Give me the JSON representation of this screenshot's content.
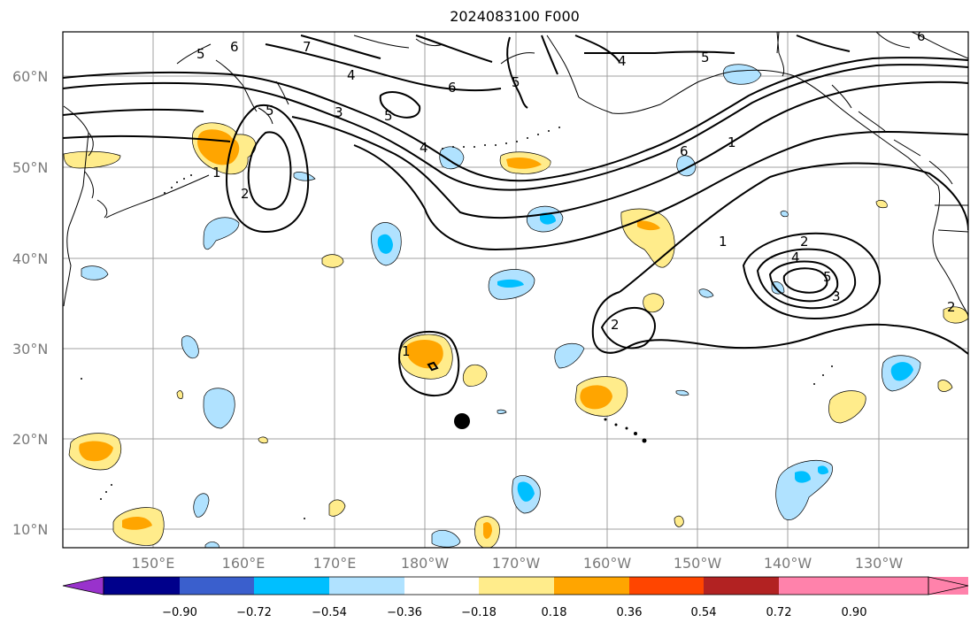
{
  "title": "2024083100 F000",
  "map": {
    "lat_labels": [
      "60°N",
      "50°N",
      "40°N",
      "30°N",
      "20°N",
      "10°N"
    ],
    "lon_labels": [
      "150°E",
      "160°E",
      "170°E",
      "180°W",
      "170°W",
      "160°W",
      "150°W",
      "140°W",
      "130°W"
    ],
    "contour_labels": [
      "1",
      "2",
      "3",
      "4",
      "5",
      "6",
      "7"
    ],
    "marker": "storm-center-dot"
  },
  "colorbar": {
    "tick_labels": [
      "−0.90",
      "−0.72",
      "−0.54",
      "−0.36",
      "−0.18",
      "0.18",
      "0.36",
      "0.54",
      "0.72",
      "0.90"
    ],
    "colors": [
      "#9932cc",
      "#00008b",
      "#3a5fcd",
      "#00bfff",
      "#b0e2ff",
      "#ffffff",
      "#ffec8b",
      "#ffa500",
      "#ff4500",
      "#b22222",
      "#ff82ab"
    ]
  }
}
